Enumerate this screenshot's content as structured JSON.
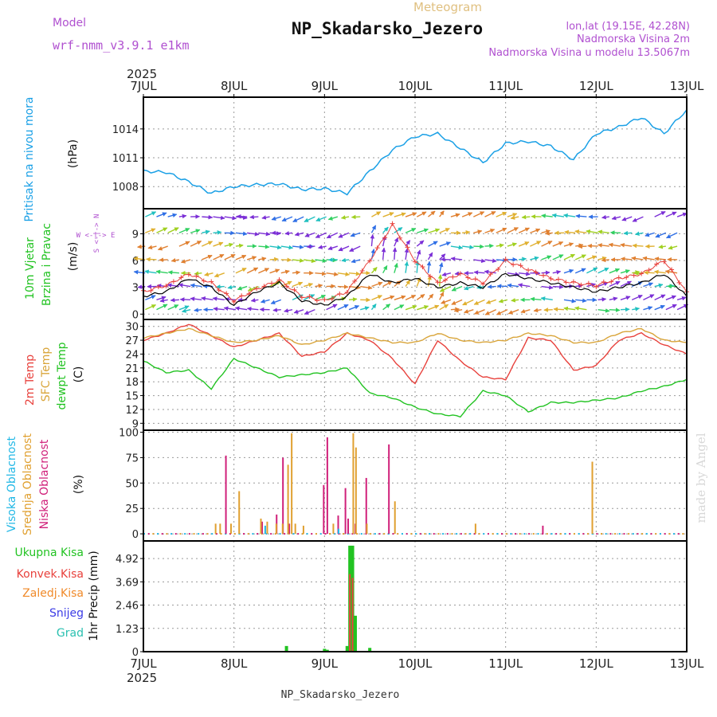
{
  "header": {
    "model_label": "Model",
    "model_name": "wrf-nmm_v3.9.1 e1km",
    "product": "Meteogram",
    "station": "NP_Skadarsko_Jezero",
    "coords": "lon,lat (19.15E, 42.28N)",
    "elevation": "Nadmorska Visina 2m",
    "model_elevation": "Nadmorska Visina u modelu 13.5067m",
    "year": "2025",
    "footer_station": "NP_Skadarsko_Jezero",
    "watermark": "made by Angel"
  },
  "time_axis": {
    "ticks": [
      "7JUL",
      "8JUL",
      "9JUL",
      "10JUL",
      "11JUL",
      "12JUL",
      "13JUL"
    ],
    "start_day": 7,
    "end_day": 13
  },
  "colors": {
    "pressure": "#1aa0e6",
    "temp2m": "#e8413c",
    "sfc": "#d9a53a",
    "dewpt": "#22c322",
    "high_cloud": "#22b8e6",
    "mid_cloud": "#e0a030",
    "low_cloud": "#d0207a",
    "total_precip": "#22c322",
    "conv_precip": "#e8413c",
    "frozen_precip": "#f08a2a",
    "snow": "#3c3ce6",
    "grad": "#2ac0b0",
    "wind_speed": "#000000",
    "wind_gust": "#e8413c",
    "grid": "#9a9a9a"
  },
  "chart_data": [
    {
      "type": "line",
      "id": "pressure",
      "ylabel": "Pritisak na nivou mora",
      "unit": "(hPa)",
      "yticks": [
        1008,
        1011,
        1014
      ],
      "ylim": [
        1005.7,
        1017.3
      ],
      "series": [
        {
          "x": [
            7.0,
            7.25,
            7.5,
            7.75,
            8.0,
            8.25,
            8.5,
            8.75,
            9.0,
            9.25,
            9.5,
            9.75,
            10.0,
            10.25,
            10.5,
            10.75,
            11.0,
            11.25,
            11.5,
            11.75,
            12.0,
            12.25,
            12.5,
            12.75,
            13.0
          ],
          "values": [
            1009.6,
            1009.5,
            1008.5,
            1007.3,
            1008.0,
            1008.2,
            1008.3,
            1007.7,
            1007.8,
            1007.3,
            1009.6,
            1011.8,
            1013.2,
            1013.5,
            1012.0,
            1010.5,
            1012.5,
            1012.7,
            1012.2,
            1010.8,
            1013.5,
            1014.2,
            1015.2,
            1013.5,
            1016.0
          ]
        }
      ]
    },
    {
      "type": "line",
      "id": "wind",
      "title_lines": [
        "10m Vjetar",
        "Brzina i Pravac"
      ],
      "unit": "(m/s)",
      "compass": "W <-|-> E",
      "compass_v": "S <-|-> N",
      "yticks": [
        0,
        3,
        6,
        9
      ],
      "ylim": [
        -0.6,
        11.8
      ],
      "series": [
        {
          "name": "speed",
          "x": [
            7.0,
            7.25,
            7.5,
            7.75,
            8.0,
            8.25,
            8.5,
            8.75,
            9.0,
            9.25,
            9.5,
            9.75,
            10.0,
            10.25,
            10.5,
            10.75,
            11.0,
            11.25,
            11.5,
            11.75,
            12.0,
            12.25,
            12.5,
            12.75,
            13.0
          ],
          "values": [
            2.0,
            2.5,
            4.0,
            3.0,
            1.0,
            2.5,
            3.5,
            1.5,
            1.0,
            2.0,
            4.5,
            3.5,
            4.0,
            3.0,
            3.5,
            3.0,
            4.5,
            4.0,
            3.5,
            3.0,
            2.5,
            3.0,
            3.5,
            4.5,
            2.0
          ]
        },
        {
          "name": "gust",
          "x": [
            7.0,
            7.25,
            7.5,
            7.75,
            8.0,
            8.25,
            8.5,
            8.75,
            9.0,
            9.25,
            9.5,
            9.75,
            10.0,
            10.25,
            10.5,
            10.75,
            11.0,
            11.25,
            11.5,
            11.75,
            12.0,
            12.25,
            12.5,
            12.75,
            13.0
          ],
          "values": [
            2.5,
            3.2,
            4.5,
            3.5,
            1.5,
            2.8,
            3.8,
            2.0,
            1.5,
            2.5,
            6.0,
            10.0,
            6.0,
            3.5,
            4.5,
            3.5,
            6.0,
            5.0,
            4.0,
            3.5,
            3.2,
            4.0,
            4.5,
            6.0,
            2.5
          ]
        }
      ]
    },
    {
      "type": "line",
      "id": "temperature",
      "labels": [
        "2m Temp",
        "SFC Temp",
        "dewpt Temp"
      ],
      "unit": "(C)",
      "yticks": [
        9,
        12,
        15,
        18,
        21,
        24,
        27,
        30
      ],
      "ylim": [
        7.5,
        31.5
      ],
      "series": [
        {
          "name": "2m Temp",
          "x": [
            7.0,
            7.25,
            7.5,
            7.75,
            8.0,
            8.25,
            8.5,
            8.75,
            9.0,
            9.25,
            9.5,
            9.75,
            10.0,
            10.25,
            10.5,
            10.75,
            11.0,
            11.25,
            11.5,
            11.75,
            12.0,
            12.25,
            12.5,
            12.75,
            13.0
          ],
          "values": [
            27.0,
            28.5,
            30.5,
            28.0,
            25.5,
            27.0,
            28.5,
            23.5,
            24.5,
            28.5,
            27.0,
            23.0,
            17.5,
            27.0,
            22.5,
            19.0,
            18.5,
            27.5,
            27.0,
            20.5,
            21.5,
            27.0,
            28.5,
            26.0,
            24.0
          ]
        },
        {
          "name": "SFC Temp",
          "x": [
            7.0,
            7.25,
            7.5,
            7.75,
            8.0,
            8.25,
            8.5,
            8.75,
            9.0,
            9.25,
            9.5,
            9.75,
            10.0,
            10.25,
            10.5,
            10.75,
            11.0,
            11.25,
            11.5,
            11.75,
            12.0,
            12.25,
            12.5,
            12.75,
            13.0
          ],
          "values": [
            27.5,
            28.5,
            29.5,
            28.0,
            26.5,
            27.0,
            28.0,
            26.0,
            27.0,
            28.5,
            27.5,
            26.5,
            26.5,
            28.5,
            27.0,
            26.5,
            27.0,
            28.5,
            28.0,
            26.5,
            26.5,
            28.5,
            29.5,
            27.0,
            26.5
          ]
        },
        {
          "name": "dewpt Temp",
          "x": [
            7.0,
            7.25,
            7.5,
            7.75,
            8.0,
            8.25,
            8.5,
            8.75,
            9.0,
            9.25,
            9.5,
            9.75,
            10.0,
            10.25,
            10.5,
            10.75,
            11.0,
            11.25,
            11.5,
            11.75,
            12.0,
            12.25,
            12.5,
            12.75,
            13.0
          ],
          "values": [
            22.5,
            20.0,
            20.5,
            16.5,
            23.0,
            21.0,
            19.0,
            19.5,
            20.0,
            21.0,
            15.5,
            14.5,
            12.5,
            11.0,
            10.5,
            16.0,
            15.0,
            11.5,
            13.5,
            13.5,
            14.0,
            14.5,
            16.0,
            17.0,
            18.5
          ]
        }
      ]
    },
    {
      "type": "bar",
      "id": "clouds",
      "labels": [
        "Visoka Oblacnost",
        "Srednja Oblacnost",
        "Niska Oblacnost"
      ],
      "unit": "(%)",
      "yticks": [
        0,
        25,
        50,
        75,
        100
      ],
      "ylim": [
        -7,
        102
      ],
      "series": [
        {
          "name": "Niska Oblacnost",
          "x": [
            7.92,
            8.32,
            8.48,
            8.55,
            8.62,
            9.0,
            9.04,
            9.16,
            9.24,
            9.27,
            9.35,
            9.47,
            9.72,
            11.42
          ],
          "values": [
            77,
            12,
            19,
            75,
            10,
            48,
            95,
            18,
            45,
            15,
            10,
            55,
            88,
            8
          ]
        },
        {
          "name": "Srednja Oblacnost",
          "x": [
            7.78,
            7.83,
            7.95,
            8.04,
            8.28,
            8.35,
            8.45,
            8.52,
            8.58,
            8.62,
            8.66,
            8.75,
            9.08,
            9.3,
            9.33,
            9.45,
            9.76,
            10.65,
            11.94
          ],
          "values": [
            10,
            10,
            10,
            42,
            15,
            12,
            10,
            10,
            68,
            99,
            10,
            8,
            10,
            99,
            85,
            10,
            32,
            10,
            71
          ]
        },
        {
          "name": "Visoka Oblacnost",
          "x": [
            8.31,
            9.12
          ],
          "values": [
            8,
            5
          ]
        }
      ]
    },
    {
      "type": "bar",
      "id": "precip",
      "labels": [
        "Ukupna Kisa",
        "Konvek.Kisa",
        "Zaledj.Kisa",
        "Snijeg",
        "Grad"
      ],
      "unit": "1hr Precip (mm)",
      "yticks": [
        "0",
        "1.23",
        "2.46",
        "3.69",
        "4.92"
      ],
      "ylim": [
        0,
        5.85
      ],
      "series": [
        {
          "name": "Ukupna Kisa",
          "x": [
            8.58,
            9.0,
            9.03,
            9.25,
            9.28,
            9.31,
            9.34,
            9.5
          ],
          "values": [
            0.3,
            0.15,
            0.1,
            0.3,
            5.6,
            5.6,
            1.9,
            0.2
          ]
        },
        {
          "name": "Konvek.Kisa",
          "x": [
            9.28,
            9.31
          ],
          "values": [
            4.1,
            3.9
          ]
        }
      ]
    }
  ]
}
